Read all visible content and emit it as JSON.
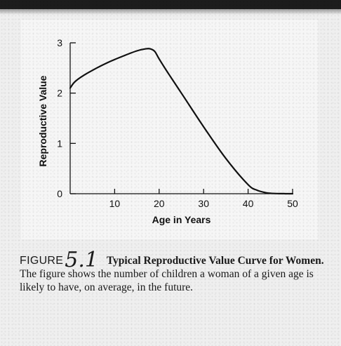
{
  "chart_data": {
    "type": "line",
    "xlabel": "Age in Years",
    "ylabel": "Reproductive Value",
    "xlim": [
      0,
      50
    ],
    "ylim": [
      0,
      3
    ],
    "xticks": [
      "10",
      "20",
      "30",
      "40",
      "50"
    ],
    "yticks": [
      "0",
      "1",
      "2",
      "3"
    ],
    "grid": false,
    "series": [
      {
        "x": [
          0,
          1,
          3,
          6,
          9,
          12,
          15,
          17,
          18,
          19,
          20,
          22,
          25,
          30,
          35,
          40,
          42,
          44,
          45,
          46,
          47,
          48,
          49,
          50
        ],
        "y": [
          2.1,
          2.22,
          2.35,
          2.5,
          2.63,
          2.74,
          2.84,
          2.88,
          2.88,
          2.83,
          2.68,
          2.4,
          2.0,
          1.33,
          0.7,
          0.18,
          0.07,
          0.02,
          0.01,
          0.004,
          0.002,
          0.001,
          0.0,
          0.0
        ]
      }
    ],
    "color": "#111111"
  },
  "caption": {
    "figure_word": "FIGURE",
    "figure_number": "5.1",
    "title": "Typical Reproductive Value Curve for Women.",
    "text": "The figure shows the number of children a woman of a given age is likely to have, on average, in the future."
  }
}
